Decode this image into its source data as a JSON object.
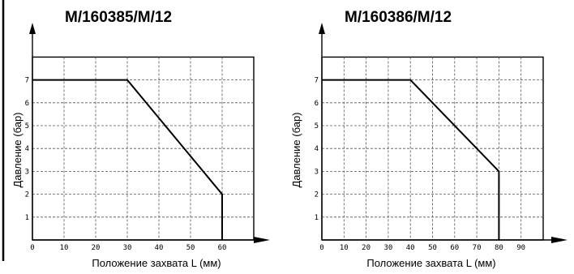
{
  "chart_data": [
    {
      "type": "line",
      "title": "M/160385/M/12",
      "xlabel": "Положение захвата L (мм)",
      "ylabel": "Давление (бар)",
      "x_ticks": [
        "0",
        "10",
        "20",
        "30",
        "40",
        "50",
        "60"
      ],
      "y_ticks": [
        "1",
        "2",
        "3",
        "4",
        "5",
        "6",
        "7"
      ],
      "xlim": [
        0,
        70
      ],
      "ylim": [
        0,
        8
      ],
      "grid": true,
      "series": [
        {
          "x": [
            0,
            30,
            60,
            60
          ],
          "y": [
            7,
            7,
            2,
            0
          ]
        }
      ]
    },
    {
      "type": "line",
      "title": "M/160386/M/12",
      "xlabel": "Положение захвата L (мм)",
      "ylabel": "Давление (бар)",
      "x_ticks": [
        "0",
        "10",
        "20",
        "30",
        "40",
        "50",
        "60",
        "70",
        "80",
        "90"
      ],
      "y_ticks": [
        "1",
        "2",
        "3",
        "4",
        "5",
        "6",
        "7"
      ],
      "xlim": [
        0,
        100
      ],
      "ylim": [
        0,
        8
      ],
      "grid": true,
      "series": [
        {
          "x": [
            0,
            40,
            80,
            80
          ],
          "y": [
            7,
            7,
            3,
            0
          ]
        }
      ]
    }
  ]
}
